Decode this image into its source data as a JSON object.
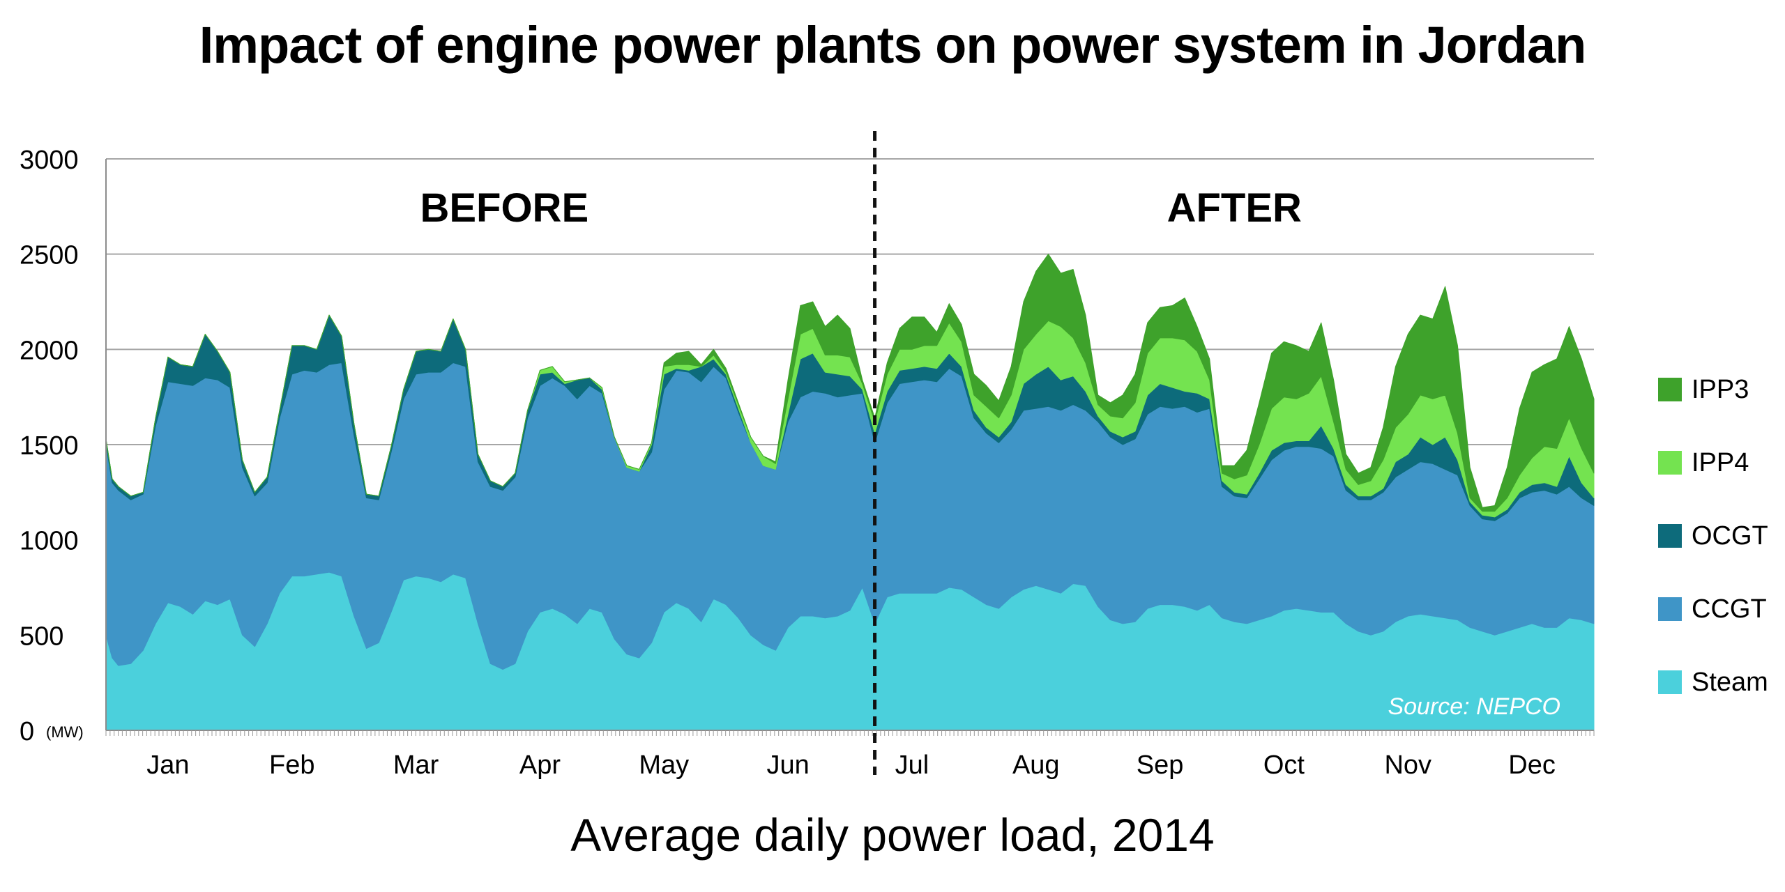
{
  "chart_data": {
    "type": "area",
    "stacked": true,
    "title": "Impact of engine power plants on power system in Jordan",
    "subtitle": "Average daily power load, 2014",
    "ylabel": "",
    "y_unit_label": "(MW)",
    "ylim": [
      0,
      3000
    ],
    "yticks": [
      0,
      500,
      1000,
      1500,
      2000,
      2500,
      3000
    ],
    "grid": true,
    "legend_position": "right",
    "source_note": "Source: NEPCO",
    "divider": {
      "x": 6.2,
      "left_label": "BEFORE",
      "right_label": "AFTER"
    },
    "xlim": [
      0,
      12
    ],
    "months": [
      "Jan",
      "Feb",
      "Mar",
      "Apr",
      "May",
      "Jun",
      "Jul",
      "Aug",
      "Sep",
      "Oct",
      "Nov",
      "Dec"
    ],
    "x": [
      0.0,
      0.05,
      0.1,
      0.2,
      0.3,
      0.4,
      0.5,
      0.6,
      0.7,
      0.8,
      0.9,
      1.0,
      1.1,
      1.2,
      1.3,
      1.4,
      1.5,
      1.6,
      1.7,
      1.8,
      1.9,
      2.0,
      2.1,
      2.2,
      2.3,
      2.4,
      2.5,
      2.6,
      2.7,
      2.8,
      2.9,
      3.0,
      3.1,
      3.2,
      3.3,
      3.4,
      3.5,
      3.6,
      3.7,
      3.8,
      3.9,
      4.0,
      4.1,
      4.2,
      4.3,
      4.4,
      4.5,
      4.6,
      4.7,
      4.8,
      4.9,
      5.0,
      5.1,
      5.2,
      5.3,
      5.4,
      5.5,
      5.6,
      5.7,
      5.8,
      5.9,
      6.0,
      6.1,
      6.2,
      6.3,
      6.4,
      6.5,
      6.6,
      6.7,
      6.8,
      6.9,
      7.0,
      7.1,
      7.2,
      7.3,
      7.4,
      7.5,
      7.6,
      7.7,
      7.8,
      7.9,
      8.0,
      8.1,
      8.2,
      8.3,
      8.4,
      8.5,
      8.6,
      8.7,
      8.8,
      8.9,
      9.0,
      9.1,
      9.2,
      9.3,
      9.4,
      9.5,
      9.6,
      9.7,
      9.8,
      9.9,
      10.0,
      10.1,
      10.2,
      10.3,
      10.4,
      10.5,
      10.6,
      10.7,
      10.8,
      10.9,
      11.0,
      11.1,
      11.2,
      11.3,
      11.4,
      11.5,
      11.6,
      11.7,
      11.8,
      11.9,
      12.0
    ],
    "series": [
      {
        "name": "Steam",
        "color": "#4bd0dc",
        "values": [
          500,
          380,
          340,
          350,
          420,
          560,
          670,
          650,
          610,
          680,
          660,
          690,
          500,
          440,
          560,
          720,
          810,
          810,
          820,
          830,
          810,
          600,
          430,
          460,
          620,
          790,
          810,
          800,
          780,
          820,
          800,
          560,
          350,
          320,
          350,
          520,
          620,
          640,
          610,
          560,
          640,
          620,
          480,
          400,
          380,
          460,
          620,
          670,
          640,
          570,
          690,
          660,
          590,
          500,
          450,
          420,
          540,
          600,
          600,
          590,
          600,
          630,
          750,
          560,
          700,
          720,
          720,
          720,
          720,
          750,
          740,
          700,
          660,
          640,
          700,
          740,
          760,
          740,
          720,
          770,
          760,
          650,
          580,
          560,
          570,
          640,
          660,
          660,
          650,
          630,
          660,
          590,
          570,
          560,
          580,
          600,
          630,
          640,
          630,
          620,
          620,
          560,
          520,
          500,
          520,
          570,
          600,
          610,
          600,
          590,
          580,
          540,
          520,
          500,
          520,
          540,
          560,
          540,
          540,
          590,
          580,
          560
        ]
      },
      {
        "name": "CCGT",
        "color": "#3f95c7",
        "values": [
          1000,
          920,
          920,
          860,
          820,
          1040,
          1160,
          1170,
          1200,
          1170,
          1180,
          1110,
          880,
          790,
          740,
          920,
          1060,
          1080,
          1060,
          1090,
          1120,
          950,
          790,
          750,
          840,
          950,
          1060,
          1080,
          1100,
          1110,
          1110,
          850,
          930,
          940,
          980,
          1120,
          1190,
          1210,
          1200,
          1180,
          1170,
          1150,
          1060,
          980,
          980,
          1000,
          1170,
          1220,
          1240,
          1260,
          1220,
          1190,
          1080,
          1010,
          940,
          950,
          1080,
          1150,
          1180,
          1180,
          1150,
          1130,
          1020,
          950,
          1020,
          1100,
          1110,
          1120,
          1110,
          1150,
          1120,
          940,
          900,
          870,
          880,
          940,
          930,
          960,
          960,
          940,
          920,
          970,
          960,
          940,
          960,
          1020,
          1040,
          1030,
          1050,
          1040,
          1030,
          690,
          660,
          660,
          740,
          820,
          840,
          850,
          860,
          860,
          820,
          700,
          690,
          710,
          730,
          760,
          770,
          800,
          800,
          780,
          760,
          640,
          590,
          600,
          620,
          680,
          690,
          720,
          700,
          690,
          640,
          620
        ]
      },
      {
        "name": "OCGT",
        "color": "#0d6b7b",
        "values": [
          30,
          20,
          20,
          20,
          10,
          40,
          130,
          100,
          100,
          230,
          150,
          80,
          40,
          20,
          30,
          40,
          150,
          130,
          120,
          260,
          140,
          60,
          20,
          20,
          30,
          50,
          120,
          120,
          110,
          230,
          90,
          40,
          30,
          20,
          20,
          40,
          60,
          30,
          10,
          100,
          40,
          20,
          0,
          0,
          0,
          40,
          80,
          10,
          10,
          80,
          40,
          20,
          20,
          0,
          0,
          0,
          40,
          200,
          200,
          110,
          120,
          100,
          20,
          50,
          60,
          70,
          70,
          70,
          70,
          80,
          50,
          40,
          30,
          30,
          40,
          140,
          180,
          210,
          160,
          150,
          100,
          30,
          30,
          40,
          40,
          100,
          120,
          110,
          80,
          100,
          50,
          30,
          20,
          20,
          30,
          50,
          40,
          30,
          30,
          120,
          40,
          30,
          20,
          20,
          20,
          80,
          80,
          130,
          100,
          170,
          80,
          20,
          20,
          20,
          20,
          30,
          40,
          40,
          40,
          160,
          80,
          40
        ]
      },
      {
        "name": "IPP4",
        "color": "#74e350",
        "values": [
          0,
          0,
          0,
          0,
          0,
          0,
          0,
          0,
          0,
          0,
          0,
          0,
          0,
          0,
          0,
          0,
          0,
          0,
          0,
          0,
          0,
          0,
          0,
          0,
          0,
          0,
          0,
          0,
          0,
          0,
          0,
          0,
          0,
          0,
          0,
          0,
          20,
          30,
          10,
          0,
          0,
          10,
          0,
          10,
          10,
          10,
          40,
          20,
          30,
          0,
          20,
          10,
          20,
          30,
          50,
          30,
          80,
          130,
          130,
          90,
          100,
          100,
          30,
          60,
          90,
          110,
          100,
          110,
          120,
          160,
          130,
          80,
          110,
          100,
          140,
          180,
          210,
          240,
          280,
          200,
          150,
          60,
          80,
          100,
          150,
          220,
          240,
          260,
          270,
          220,
          100,
          40,
          70,
          100,
          150,
          220,
          240,
          220,
          250,
          260,
          140,
          80,
          60,
          80,
          150,
          180,
          210,
          220,
          240,
          220,
          140,
          20,
          20,
          30,
          60,
          90,
          140,
          190,
          200,
          200,
          180,
          130
        ]
      },
      {
        "name": "IPP3",
        "color": "#3ea22b",
        "values": [
          0,
          0,
          0,
          0,
          0,
          0,
          0,
          0,
          0,
          0,
          0,
          0,
          0,
          0,
          0,
          0,
          0,
          0,
          0,
          0,
          0,
          0,
          0,
          0,
          0,
          0,
          0,
          0,
          0,
          0,
          0,
          0,
          0,
          0,
          0,
          0,
          0,
          0,
          0,
          0,
          0,
          0,
          0,
          0,
          0,
          0,
          20,
          60,
          70,
          10,
          30,
          20,
          10,
          0,
          0,
          10,
          100,
          150,
          140,
          150,
          210,
          150,
          20,
          20,
          60,
          110,
          170,
          150,
          70,
          100,
          90,
          110,
          110,
          90,
          150,
          250,
          330,
          350,
          280,
          360,
          250,
          50,
          70,
          120,
          150,
          160,
          160,
          170,
          220,
          130,
          110,
          40,
          70,
          130,
          220,
          290,
          290,
          280,
          220,
          280,
          220,
          80,
          60,
          70,
          170,
          320,
          420,
          420,
          420,
          570,
          460,
          160,
          20,
          30,
          160,
          350,
          450,
          430,
          470,
          480,
          470,
          390
        ]
      }
    ]
  }
}
